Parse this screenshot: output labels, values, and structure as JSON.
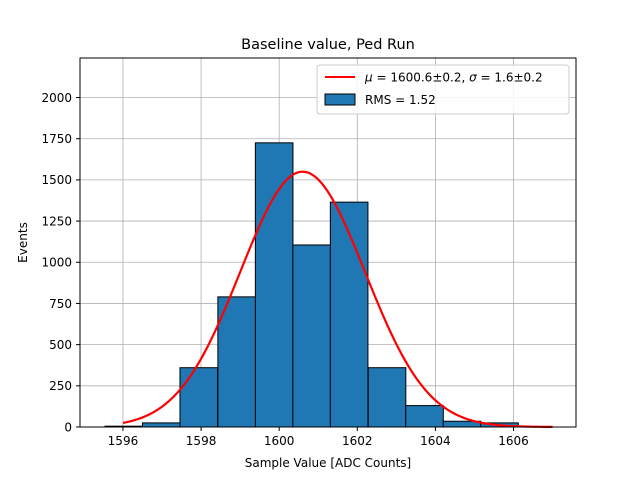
{
  "chart_data": {
    "type": "bar",
    "title": "Baseline value, Ped Run",
    "xlabel": "Sample Value [ADC Counts]",
    "ylabel": "Events",
    "xlim": [
      1594.9,
      1607.6
    ],
    "ylim": [
      0,
      2240
    ],
    "xticks": [
      1596,
      1598,
      1600,
      1602,
      1604,
      1606
    ],
    "yticks": [
      0,
      250,
      500,
      750,
      1000,
      1250,
      1500,
      1750,
      2000
    ],
    "grid": true,
    "legend_position": "top-right",
    "histogram": {
      "name": "RMS = 1.52",
      "color": "#1f77b4",
      "edgecolor": "#000000",
      "bin_width": 0.9625,
      "bins": [
        {
          "x0": 1595.54,
          "value": 5
        },
        {
          "x0": 1596.5,
          "value": 25
        },
        {
          "x0": 1597.46,
          "value": 360
        },
        {
          "x0": 1598.43,
          "value": 790
        },
        {
          "x0": 1599.39,
          "value": 1725
        },
        {
          "x0": 1600.35,
          "value": 1105
        },
        {
          "x0": 1601.31,
          "value": 1365
        },
        {
          "x0": 1602.28,
          "value": 360
        },
        {
          "x0": 1603.24,
          "value": 130
        },
        {
          "x0": 1604.2,
          "value": 35
        },
        {
          "x0": 1605.16,
          "value": 25
        }
      ]
    },
    "fit": {
      "type": "gaussian",
      "mean": 1600.6,
      "sigma": 1.6,
      "amplitude": 1550,
      "x_range": [
        1596.0,
        1607.0
      ],
      "color": "#ff0000",
      "legend_parts": [
        "μ",
        " = 1600.6±0.2, ",
        "σ",
        " = 1.6±0.2"
      ]
    }
  }
}
